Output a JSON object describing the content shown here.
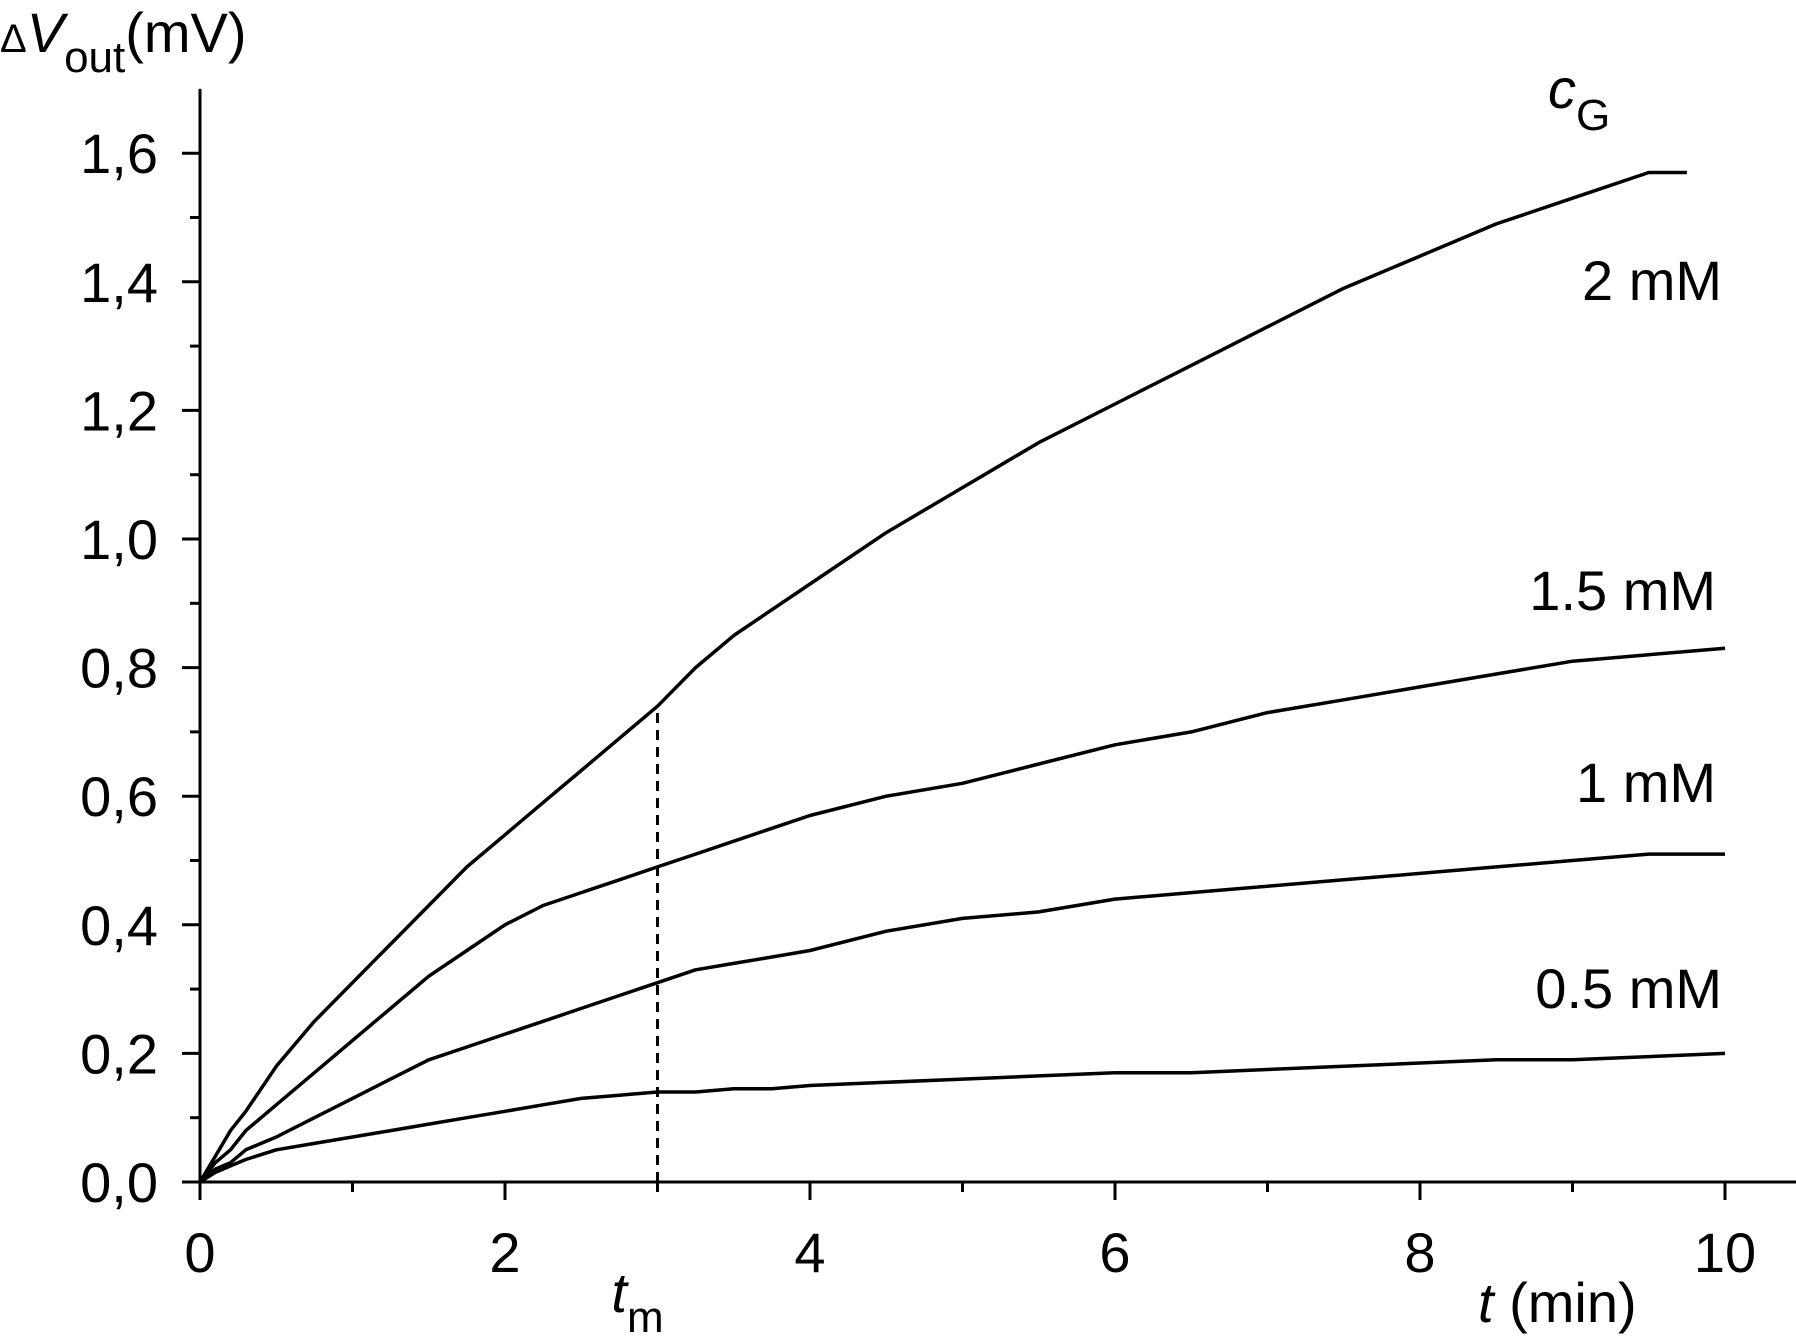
{
  "chart_data": {
    "type": "line",
    "ylabel": {
      "prefix": "Δ",
      "var": "V",
      "sub": "out",
      "unit": "(mV)"
    },
    "xlabel": {
      "var": "t",
      "unit": " (min)"
    },
    "xlim": [
      0,
      10.5
    ],
    "ylim": [
      0,
      1.7
    ],
    "x_ticks": [
      "0",
      "2",
      "4",
      "6",
      "8",
      "10"
    ],
    "x_tick_values": [
      0,
      2,
      4,
      6,
      8,
      10
    ],
    "y_ticks": [
      "0,0",
      "0,2",
      "0,4",
      "0,6",
      "0,8",
      "1,0",
      "1,2",
      "1,4",
      "1,6"
    ],
    "y_tick_values": [
      0,
      0.2,
      0.4,
      0.6,
      0.8,
      1.0,
      1.2,
      1.4,
      1.6
    ],
    "legend_title": {
      "var": "c",
      "sub": "G"
    },
    "marker": {
      "var": "t",
      "sub": "m",
      "x": 3,
      "y_top": 0.74
    },
    "series": [
      {
        "name": "2 mM",
        "x": [
          0,
          0.1,
          0.2,
          0.3,
          0.5,
          0.75,
          1.0,
          1.25,
          1.5,
          1.75,
          2.0,
          2.25,
          2.5,
          2.75,
          3.0,
          3.25,
          3.5,
          3.75,
          4.0,
          4.5,
          5.0,
          5.5,
          6.0,
          6.5,
          7.0,
          7.5,
          8.0,
          8.5,
          9.0,
          9.5,
          9.75
        ],
        "y": [
          0,
          0.04,
          0.08,
          0.11,
          0.18,
          0.25,
          0.31,
          0.37,
          0.43,
          0.49,
          0.54,
          0.59,
          0.64,
          0.69,
          0.74,
          0.8,
          0.85,
          0.89,
          0.93,
          1.01,
          1.08,
          1.15,
          1.21,
          1.27,
          1.33,
          1.39,
          1.44,
          1.49,
          1.53,
          1.57,
          1.57
        ]
      },
      {
        "name": "1.5 mM",
        "x": [
          0,
          0.1,
          0.2,
          0.3,
          0.5,
          0.75,
          1.0,
          1.25,
          1.5,
          1.75,
          2.0,
          2.25,
          2.5,
          2.75,
          3.0,
          3.25,
          3.5,
          3.75,
          4.0,
          4.5,
          5.0,
          5.5,
          6.0,
          6.5,
          7.0,
          7.5,
          8.0,
          8.5,
          9.0,
          9.5,
          10.0
        ],
        "y": [
          0,
          0.03,
          0.05,
          0.08,
          0.12,
          0.17,
          0.22,
          0.27,
          0.32,
          0.36,
          0.4,
          0.43,
          0.45,
          0.47,
          0.49,
          0.51,
          0.53,
          0.55,
          0.57,
          0.6,
          0.62,
          0.65,
          0.68,
          0.7,
          0.73,
          0.75,
          0.77,
          0.79,
          0.81,
          0.82,
          0.83
        ]
      },
      {
        "name": "1 mM",
        "x": [
          0,
          0.1,
          0.2,
          0.3,
          0.5,
          0.75,
          1.0,
          1.25,
          1.5,
          1.75,
          2.0,
          2.25,
          2.5,
          2.75,
          3.0,
          3.25,
          3.5,
          3.75,
          4.0,
          4.5,
          5.0,
          5.5,
          6.0,
          6.5,
          7.0,
          7.5,
          8.0,
          8.5,
          9.0,
          9.5,
          10.0
        ],
        "y": [
          0,
          0.02,
          0.03,
          0.05,
          0.07,
          0.1,
          0.13,
          0.16,
          0.19,
          0.21,
          0.23,
          0.25,
          0.27,
          0.29,
          0.31,
          0.33,
          0.34,
          0.35,
          0.36,
          0.39,
          0.41,
          0.42,
          0.44,
          0.45,
          0.46,
          0.47,
          0.48,
          0.49,
          0.5,
          0.51,
          0.51
        ]
      },
      {
        "name": "0.5 mM",
        "x": [
          0,
          0.1,
          0.2,
          0.3,
          0.5,
          0.75,
          1.0,
          1.25,
          1.5,
          1.75,
          2.0,
          2.25,
          2.5,
          2.75,
          3.0,
          3.25,
          3.5,
          3.75,
          4.0,
          4.5,
          5.0,
          5.5,
          6.0,
          6.5,
          7.0,
          7.5,
          8.0,
          8.5,
          9.0,
          9.5,
          10.0
        ],
        "y": [
          0,
          0.015,
          0.025,
          0.035,
          0.05,
          0.06,
          0.07,
          0.08,
          0.09,
          0.1,
          0.11,
          0.12,
          0.13,
          0.135,
          0.14,
          0.14,
          0.145,
          0.145,
          0.15,
          0.155,
          0.16,
          0.165,
          0.17,
          0.17,
          0.175,
          0.18,
          0.185,
          0.19,
          0.19,
          0.195,
          0.2
        ]
      }
    ]
  }
}
